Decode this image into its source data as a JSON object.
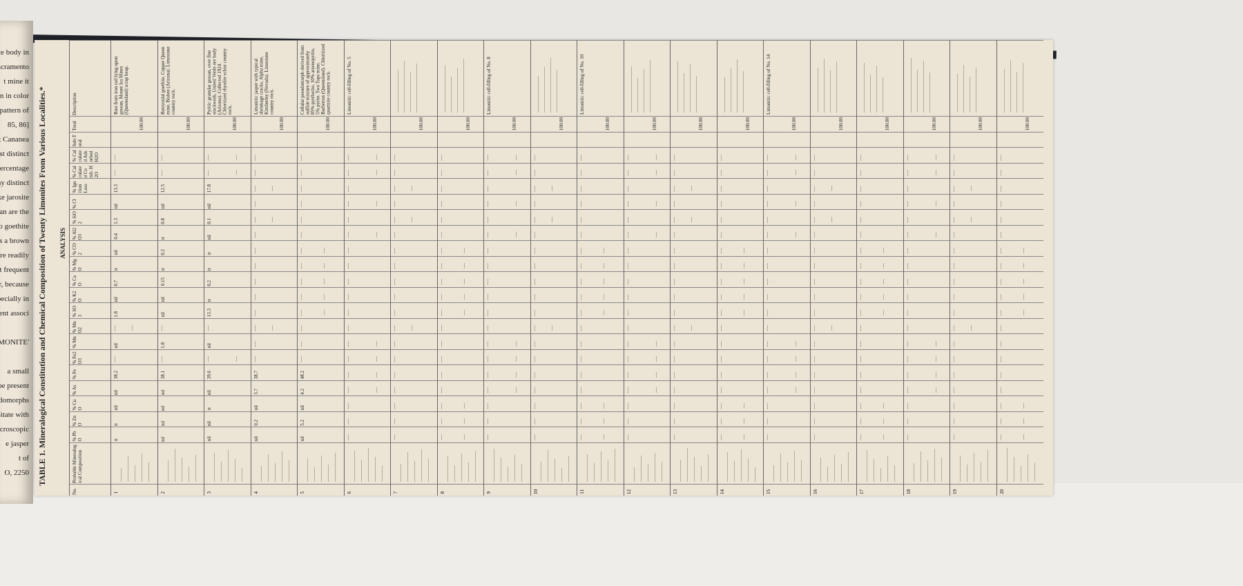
{
  "left_page": {
    "lines": [
      "te body in",
      "s the Sacramento",
      "t mine it",
      "n in color",
      "e pattern of",
      "85, 86]",
      "also at Cananea",
      "most distinct",
      "all percentage",
      "many distinct",
      "). Like jarosite",
      "an are the",
      "ters to goethite",
      "as a brown",
      "more readily",
      "not frequent",
      "ver, because",
      "specially in",
      "quent associ",
      "",
      "IMONITE'",
      "",
      "a small",
      "ay be present",
      "udomorphs",
      "ecipitate with",
      "microscopic",
      "e jasper",
      "t of",
      "O, 2250"
    ]
  },
  "table": {
    "title": "TABLE 1. Mineralogical Constitution and Chemical Composition of Twenty Limonites From Various Localities.*",
    "subtitle": "ANALYSIS",
    "columns": [
      "No.",
      "Probable Mineralogical Composition",
      "% PbO",
      "% ZnO",
      "% CuO",
      "% As",
      "% Fe",
      "% Fe2O3",
      "% Mn",
      "% MnO2",
      "% SO3",
      "% K2O",
      "% CaO",
      "% MgO",
      "% CO2",
      "% Al2O3",
      "% SiO2",
      "% Cl",
      "% Ignition Loss",
      "% Calculated Comb. H2O",
      "% Calculated Adsorbed H2O",
      "Sub-Total",
      "Total",
      "Description"
    ],
    "rows": [
      {
        "no": "1",
        "values": {
          "% PbO": "tr",
          "% ZnO": "tr",
          "% CuO": "nil",
          "% As": "nil",
          "% Fe": "38.2",
          "% Mn": "nil",
          "% SO3": "1.8",
          "% K2O": "nil",
          "% CaO": "0.7",
          "% MgO": "tr",
          "% CO2": "nil",
          "% Al2O3": "0.4",
          "% SiO2": "1.3",
          "% Cl": "nil",
          "% Ignition Loss": "13.3",
          "Total": "100.00"
        },
        "description": "Rust from iron rail lying upon gossan, Mount Isa Mines (Queensland) scrap heap."
      },
      {
        "no": "2",
        "values": {
          "% PbO": "nd",
          "% ZnO": "nd",
          "% CuO": "nd",
          "% As": "nd",
          "% Fe": "38.1",
          "% Mn": "1.8",
          "% SO3": "nil",
          "% K2O": "nil",
          "% CaO": "0.15",
          "% MgO": "tr",
          "% CO2": "0.2",
          "% Al2O3": "tr",
          "% SiO2": "0.8",
          "% Cl": "nil",
          "% Ignition Loss": "12.5",
          "Total": "100.00"
        },
        "description": "Botryoidal goethite, Copper Queen mine, Bisbee (Arizona). Limestone country rock."
      },
      {
        "no": "3",
        "values": {
          "% PbO": "nil",
          "% ZnO": "nil",
          "% CuO": "tr",
          "% As": "nil",
          "% Fe": "39.6",
          "% Mn": "nil",
          "% SO3": "13.3",
          "% K2O": "tr",
          "% CaO": "0.2",
          "% MgO": "tr",
          "% CO2": "tr",
          "% Al2O3": "nil",
          "% SiO2": "0.1",
          "% Cl": "nil",
          "% Ignition Loss": "17.8",
          "Total": "100.00"
        },
        "description": "Pyritic granular gossan, over fine stockwork, United Verde ore body (Arizona). Collected 1924. Chloritized rhyolite schist country rock."
      },
      {
        "no": "4",
        "values": {
          "% PbO": "nil",
          "% ZnO": "0.2",
          "% CuO": "nil",
          "% As": "3.7",
          "% Fe": "38.7",
          "Total": "100.00"
        },
        "description": "Limonitic jasper with typical shrinkage cracks, Alpha mine, Kimberley (Nevada). Limestone country rock."
      },
      {
        "no": "5",
        "values": {
          "% PbO": "nil",
          "% ZnO": "5.2",
          "% CuO": "nil",
          "% As": "4.2",
          "% Fe": "48.2",
          "Total": "100.00"
        },
        "description": "Cellular pseudomorph derived from sulfide mixture of approximately 85% pyrrhotite, 10% arsenopyrite, 5% pyrite. Two Tops mine, Barberton (Queensland). Chloritized quartzite country rock."
      },
      {
        "no": "6",
        "values": {
          "Total": "100.00"
        },
        "description": "Limonitic cell-filling of No. 5"
      },
      {
        "no": "7",
        "values": {
          "Total": "100.00"
        },
        "description": ""
      },
      {
        "no": "8",
        "values": {
          "Total": "100.00"
        },
        "description": ""
      },
      {
        "no": "9",
        "values": {
          "Total": "100.00"
        },
        "description": "Limonitic cell-filling of No. 8"
      },
      {
        "no": "10",
        "values": {
          "Total": "100.00"
        },
        "description": ""
      },
      {
        "no": "11",
        "values": {
          "Total": "100.00"
        },
        "description": "Limonitic cell-filling of No. 10"
      },
      {
        "no": "12",
        "values": {
          "Total": "100.00"
        },
        "description": ""
      },
      {
        "no": "13",
        "values": {
          "Total": "100.00"
        },
        "description": ""
      },
      {
        "no": "14",
        "values": {
          "Total": "100.00"
        },
        "description": ""
      },
      {
        "no": "15",
        "values": {
          "Total": "100.00"
        },
        "description": "Limonitic cell-filling of No. 14"
      },
      {
        "no": "16",
        "values": {
          "Total": "100.00"
        },
        "description": ""
      },
      {
        "no": "17",
        "values": {
          "Total": "100.00"
        },
        "description": ""
      },
      {
        "no": "18",
        "values": {
          "Total": "100.00"
        },
        "description": ""
      },
      {
        "no": "19",
        "values": {
          "Total": "100.00"
        },
        "description": ""
      },
      {
        "no": "20",
        "values": {
          "Total": "100.00"
        },
        "description": ""
      }
    ]
  }
}
